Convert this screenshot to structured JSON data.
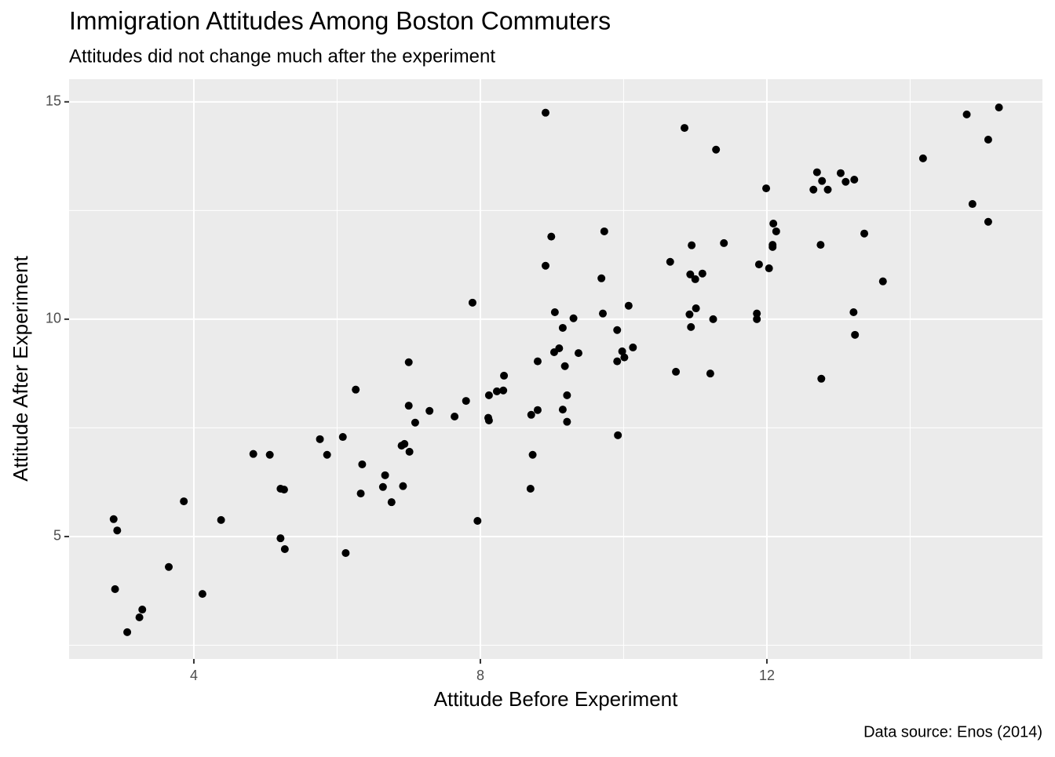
{
  "chart_data": {
    "type": "scatter",
    "title": "Immigration Attitudes Among Boston Commuters",
    "subtitle": "Attitudes did not change much after the experiment",
    "caption": "Data source: Enos (2014)",
    "x_label": "Attitude Before Experiment",
    "y_label": "Attitude After Experiment",
    "x": [
      2.88,
      2.93,
      2.9,
      3.07,
      3.24,
      3.28,
      3.65,
      3.86,
      4.12,
      4.38,
      4.83,
      5.06,
      5.21,
      5.26,
      5.21,
      5.27,
      5.76,
      5.86,
      6.08,
      6.12,
      6.26,
      6.35,
      6.33,
      6.64,
      6.67,
      6.76,
      6.92,
      6.94,
      6.9,
      7.0,
      7.0,
      7.01,
      7.09,
      7.29,
      7.64,
      7.8,
      7.89,
      7.96,
      8.11,
      8.12,
      8.12,
      8.23,
      8.32,
      8.33,
      8.7,
      8.71,
      8.73,
      8.8,
      8.8,
      8.91,
      8.91,
      8.99,
      9.04,
      9.03,
      9.1,
      9.15,
      9.15,
      9.18,
      9.21,
      9.21,
      9.3,
      9.37,
      9.69,
      9.71,
      9.73,
      9.91,
      9.91,
      9.92,
      9.98,
      10.01,
      10.07,
      10.13,
      10.65,
      10.73,
      10.85,
      10.92,
      10.93,
      10.94,
      10.95,
      11.0,
      11.01,
      11.1,
      11.21,
      11.25,
      11.29,
      11.4,
      11.86,
      11.86,
      11.89,
      11.99,
      12.03,
      12.08,
      12.09,
      12.08,
      12.13,
      12.65,
      12.7,
      12.77,
      12.75,
      12.76,
      12.85,
      13.03,
      13.1,
      13.22,
      13.21,
      13.23,
      13.36,
      13.62,
      14.18,
      14.79,
      14.87,
      15.09,
      15.09,
      15.24
    ],
    "y": [
      5.4,
      5.14,
      3.79,
      2.8,
      3.14,
      3.32,
      4.3,
      5.81,
      3.68,
      5.38,
      6.9,
      6.88,
      6.1,
      6.08,
      4.96,
      4.71,
      7.24,
      6.88,
      7.29,
      4.62,
      8.38,
      6.66,
      5.99,
      6.14,
      6.41,
      5.79,
      6.16,
      7.13,
      7.09,
      9.01,
      8.01,
      6.95,
      7.62,
      7.89,
      7.76,
      8.12,
      10.38,
      5.36,
      7.73,
      7.67,
      8.25,
      8.34,
      8.36,
      8.7,
      6.1,
      7.8,
      6.88,
      7.91,
      9.03,
      14.75,
      11.23,
      11.9,
      10.16,
      9.24,
      9.33,
      9.8,
      7.92,
      8.92,
      8.25,
      7.64,
      10.02,
      9.22,
      10.94,
      10.13,
      12.02,
      9.75,
      9.03,
      7.33,
      9.26,
      9.12,
      10.31,
      9.35,
      11.32,
      8.79,
      14.4,
      10.11,
      11.03,
      9.82,
      11.7,
      10.92,
      10.25,
      11.05,
      8.75,
      10.0,
      13.9,
      11.75,
      10.13,
      10.0,
      11.26,
      13.01,
      11.17,
      11.66,
      12.2,
      11.71,
      12.02,
      12.98,
      13.38,
      13.18,
      11.71,
      8.63,
      12.98,
      13.36,
      13.16,
      13.21,
      10.16,
      9.64,
      11.97,
      10.87,
      13.7,
      14.71,
      12.65,
      14.13,
      12.24,
      14.87
    ],
    "color": "#000000",
    "xlim": [
      2.258,
      15.847
    ],
    "ylim": [
      2.184,
      15.52
    ],
    "xticks": [
      4,
      8,
      12
    ],
    "yticks": [
      5,
      10,
      15
    ],
    "grid": true
  }
}
